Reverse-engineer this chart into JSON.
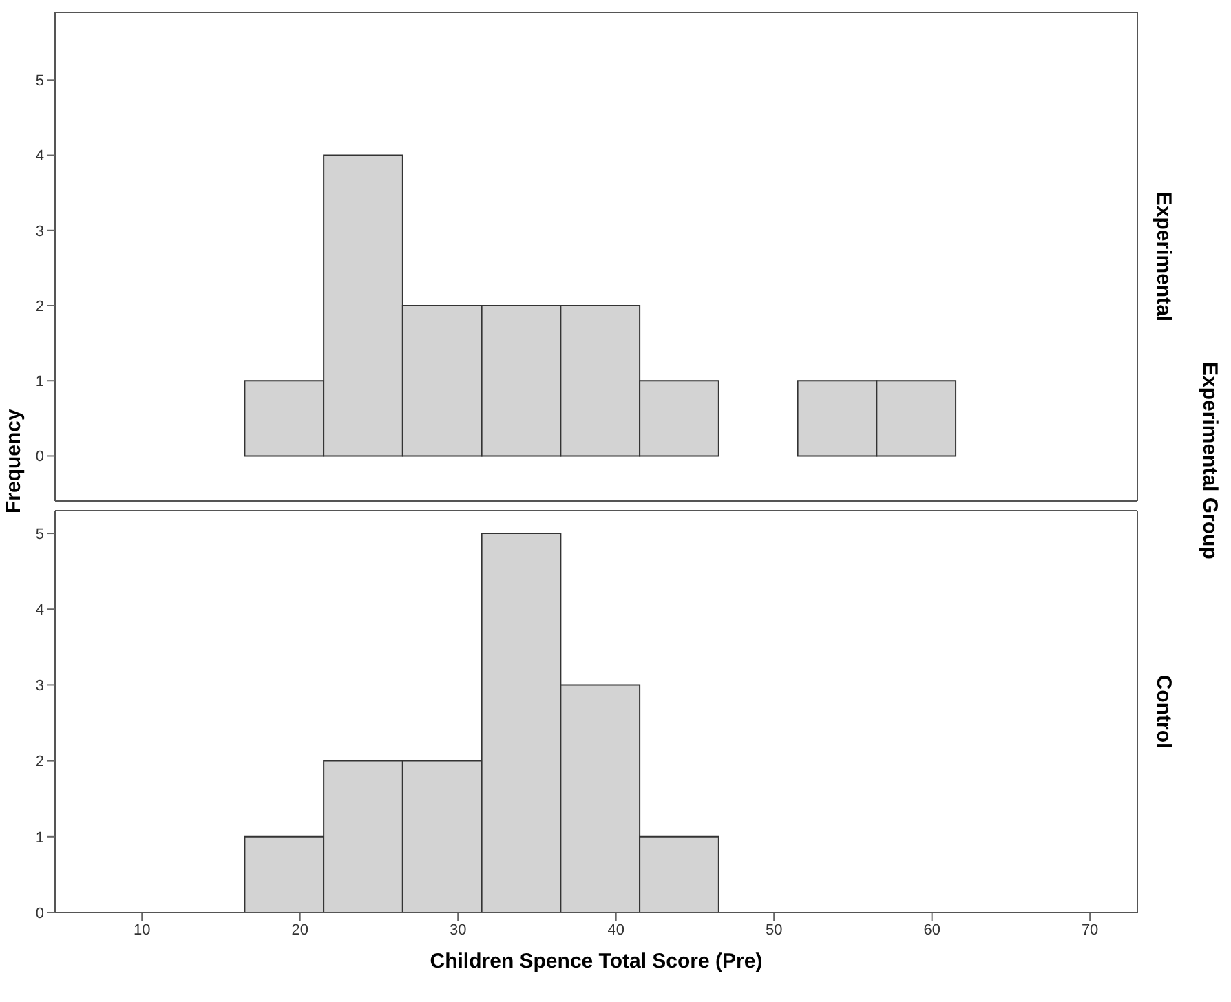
{
  "chart_data": [
    {
      "type": "histogram",
      "y2label": "Experimental",
      "ylabel": "Frequency",
      "annotations": [
        "Experimental Group"
      ],
      "bins": [
        16.5,
        21.5,
        26.5,
        31.5,
        36.5,
        41.5,
        46.5,
        51.5,
        56.5,
        61.5
      ],
      "values": [
        1,
        4,
        2,
        2,
        2,
        1,
        0,
        1,
        1
      ],
      "color": "#d3d3d3",
      "xlim": [
        4.5,
        73
      ],
      "ylim": [
        -0.6,
        5.9
      ],
      "yticks": [
        0,
        1,
        2,
        3,
        4,
        5
      ],
      "xticks": [
        10,
        20,
        30,
        40,
        50,
        60,
        70
      ],
      "tick_labels": "y"
    },
    {
      "type": "histogram",
      "y2label": "Control",
      "xlabel": "Children Spence Total Score (Pre)",
      "bins": [
        16.5,
        21.5,
        26.5,
        31.5,
        36.5,
        41.5,
        46.5
      ],
      "values": [
        1,
        2,
        2,
        5,
        3,
        1
      ],
      "color": "#d3d3d3",
      "xlim": [
        4.5,
        73
      ],
      "ylim": [
        0,
        5.3
      ],
      "yticks": [
        0,
        1,
        2,
        3,
        4,
        5
      ],
      "xticks": [
        10,
        20,
        30,
        40,
        50,
        60,
        70
      ]
    }
  ]
}
